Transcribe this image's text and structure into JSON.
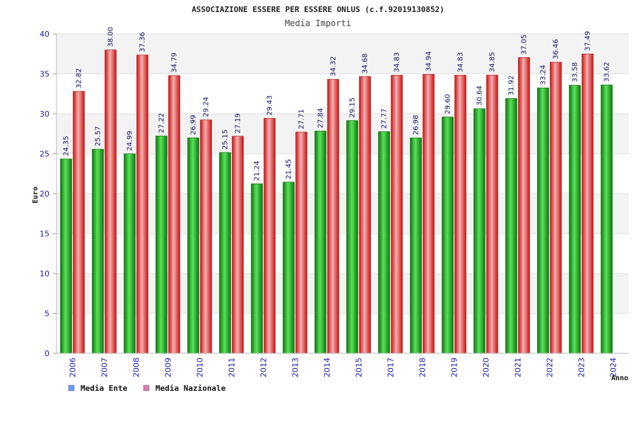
{
  "chart_data": {
    "type": "bar",
    "title": "ASSOCIAZIONE ESSERE PER ESSERE ONLUS (c.f.92019130852)",
    "subtitle": "Media Importi",
    "xlabel": "Anno",
    "ylabel": "Euro",
    "ylim": [
      0,
      40
    ],
    "yticks": [
      0,
      5,
      10,
      15,
      20,
      25,
      30,
      35,
      40
    ],
    "categories": [
      "2006",
      "2007",
      "2008",
      "2009",
      "2010",
      "2011",
      "2012",
      "2013",
      "2014",
      "2015",
      "2017",
      "2018",
      "2019",
      "2020",
      "2021",
      "2022",
      "2023",
      "2024"
    ],
    "series": [
      {
        "name": "Media Ente",
        "color": "#18b418",
        "legend_color": "#6699ff",
        "values": [
          24.35,
          25.57,
          24.99,
          27.22,
          26.99,
          25.15,
          21.24,
          21.45,
          27.84,
          29.15,
          27.77,
          26.98,
          29.6,
          30.64,
          31.92,
          33.24,
          33.58,
          33.62
        ],
        "labels": [
          "24.35",
          "25.57",
          "24.99",
          "27.22",
          "26.99",
          "25.15",
          "21.24",
          "21.45",
          "27.84",
          "29.15",
          "27.77",
          "26.98",
          "29.60",
          "30.64",
          "31.92",
          "33.24",
          "33.58",
          "33.62"
        ]
      },
      {
        "name": "Media Nazionale",
        "color": "#e62828",
        "legend_color": "#d97fb0",
        "values": [
          32.82,
          38.0,
          37.36,
          34.79,
          29.24,
          27.19,
          29.43,
          27.71,
          34.32,
          34.68,
          34.83,
          34.94,
          34.83,
          34.85,
          37.05,
          36.46,
          37.49,
          null
        ],
        "labels": [
          "32.82",
          "38.00",
          "37.36",
          "34.79",
          "29.24",
          "27.19",
          "29.43",
          "27.71",
          "34.32",
          "34.68",
          "34.83",
          "34.94",
          "34.83",
          "34.85",
          "37.05",
          "36.46",
          "37.49",
          ""
        ]
      }
    ],
    "grid": true,
    "legend": "bottom-left"
  }
}
